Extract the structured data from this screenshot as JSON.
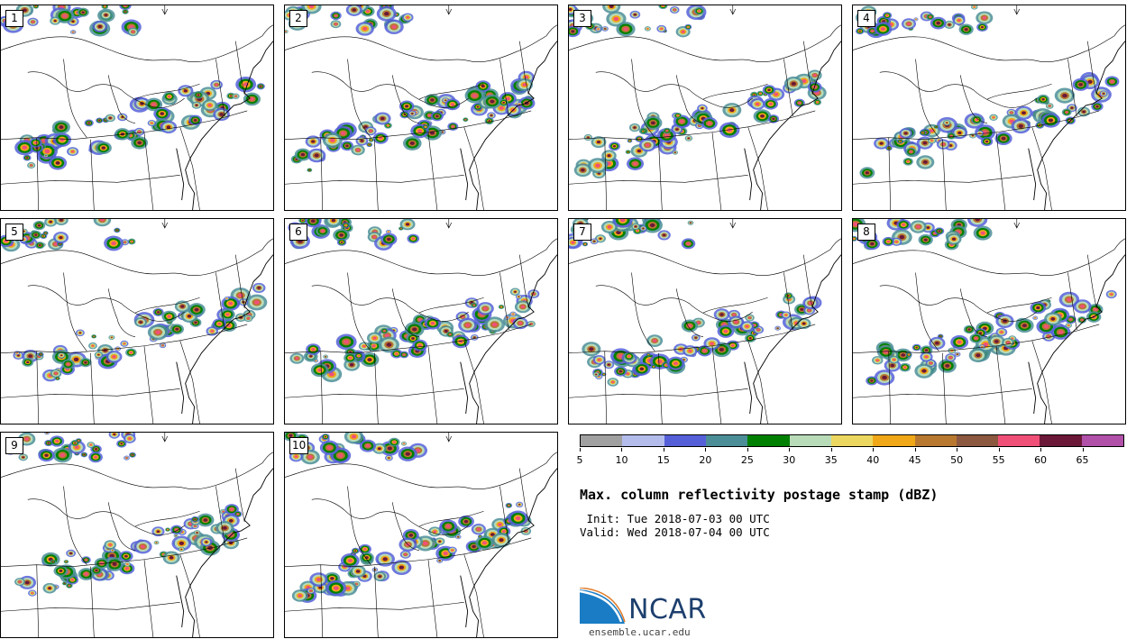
{
  "panels": [
    {
      "label": "1"
    },
    {
      "label": "2"
    },
    {
      "label": "3"
    },
    {
      "label": "4"
    },
    {
      "label": "5"
    },
    {
      "label": "6"
    },
    {
      "label": "7"
    },
    {
      "label": "8"
    },
    {
      "label": "9"
    },
    {
      "label": "10"
    }
  ],
  "colorbar": {
    "colors": [
      "#a0a0a0",
      "#b4bcec",
      "#5560d8",
      "#4b8e98",
      "#008000",
      "#b8dcb8",
      "#ecd860",
      "#f0a818",
      "#b87830",
      "#8c5840",
      "#f05078",
      "#6c1838",
      "#b050a8"
    ],
    "tick_labels": [
      "5",
      "10",
      "15",
      "20",
      "25",
      "30",
      "35",
      "40",
      "45",
      "50",
      "55",
      "60",
      "65"
    ]
  },
  "title": "Max. column reflectivity postage stamp (dBZ)",
  "init_text": " Init: Tue 2018-07-03 00 UTC",
  "valid_text": "Valid: Wed 2018-07-04 00 UTC",
  "logo": {
    "text": "NCAR",
    "website": "ensemble.ucar.edu"
  }
}
